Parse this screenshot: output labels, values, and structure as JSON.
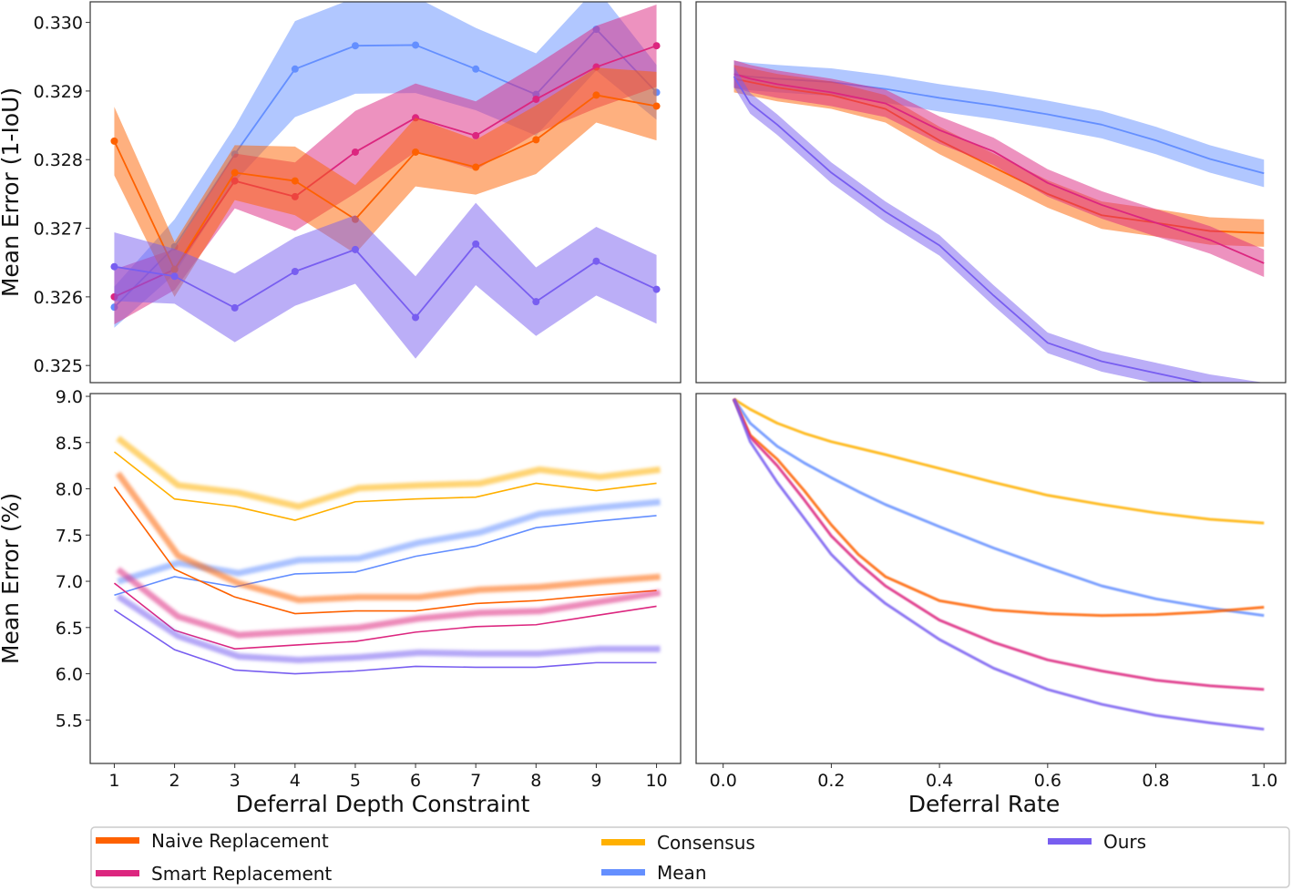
{
  "colors": {
    "Naive Replacement": "#FE6100",
    "Smart Replacement": "#DC267F",
    "Consensus": "#FFB000",
    "Mean": "#648FFF",
    "Ours": "#785EF0"
  },
  "legend": {
    "placement": "bottom",
    "entries": [
      "Naive Replacement",
      "Smart Replacement",
      "Consensus",
      "Mean",
      "Ours"
    ]
  },
  "chart_data": [
    {
      "type": "line",
      "panel": "top-left",
      "xlabel": "",
      "ylabel": "Mean Error (1-IoU)",
      "xlim": [
        0.6,
        10.4
      ],
      "ylim": [
        0.32475,
        0.3303
      ],
      "yticks": [
        "0.325",
        "0.326",
        "0.327",
        "0.328",
        "0.329",
        "0.330"
      ],
      "markers": true,
      "shaded_band": true,
      "x": [
        1,
        2,
        3,
        4,
        5,
        6,
        7,
        8,
        9,
        10
      ],
      "series": [
        {
          "name": "Mean",
          "values": [
            0.32585,
            0.32673,
            0.32808,
            0.32932,
            0.32966,
            0.32967,
            0.32932,
            0.32895,
            0.3299,
            0.32898
          ],
          "band": [
            0.0003,
            0.0004,
            0.0004,
            0.0007,
            0.0007,
            0.0007,
            0.0006,
            0.0006,
            0.0006,
            0.0004
          ]
        },
        {
          "name": "Smart Replacement",
          "values": [
            0.326,
            0.3264,
            0.32769,
            0.32746,
            0.32811,
            0.32861,
            0.32835,
            0.32888,
            0.32935,
            0.32966
          ],
          "band": [
            0.0004,
            0.0003,
            0.0004,
            0.0005,
            0.0006,
            0.0005,
            0.0005,
            0.0005,
            0.0006,
            0.0006
          ]
        },
        {
          "name": "Naive Replacement",
          "values": [
            0.32827,
            0.3264,
            0.32781,
            0.32769,
            0.32713,
            0.32811,
            0.32789,
            0.32829,
            0.32894,
            0.32878
          ],
          "band": [
            0.0005,
            0.0004,
            0.0004,
            0.0005,
            0.0005,
            0.0005,
            0.0004,
            0.0005,
            0.0004,
            0.0005
          ]
        },
        {
          "name": "Ours",
          "values": [
            0.32644,
            0.3263,
            0.32584,
            0.32637,
            0.32669,
            0.3257,
            0.32677,
            0.32593,
            0.32652,
            0.32611
          ],
          "band": [
            0.0005,
            0.0004,
            0.0005,
            0.0005,
            0.0005,
            0.0006,
            0.0006,
            0.0005,
            0.0005,
            0.0005
          ]
        }
      ]
    },
    {
      "type": "line",
      "panel": "top-right",
      "xlabel": "",
      "ylabel": "",
      "xlim": [
        -0.05,
        1.04
      ],
      "ylim": [
        0.32475,
        0.3303
      ],
      "shaded_band": true,
      "x": [
        0.02,
        0.05,
        0.1,
        0.2,
        0.3,
        0.4,
        0.5,
        0.6,
        0.7,
        0.8,
        0.9,
        1.0
      ],
      "series": [
        {
          "name": "Mean",
          "values": [
            0.32924,
            0.32921,
            0.32918,
            0.32913,
            0.32903,
            0.3289,
            0.32879,
            0.32866,
            0.32851,
            0.32828,
            0.32801,
            0.3278
          ],
          "band": 0.0002
        },
        {
          "name": "Naive Replacement",
          "values": [
            0.32918,
            0.32913,
            0.32905,
            0.32894,
            0.32874,
            0.32828,
            0.32789,
            0.3275,
            0.32719,
            0.32708,
            0.32696,
            0.32693
          ],
          "band": 0.0002
        },
        {
          "name": "Smart Replacement",
          "values": [
            0.32925,
            0.32918,
            0.3291,
            0.32898,
            0.32882,
            0.32843,
            0.32812,
            0.32766,
            0.32734,
            0.32708,
            0.32683,
            0.32649
          ],
          "band": 0.0002
        },
        {
          "name": "Ours",
          "values": [
            0.32921,
            0.32882,
            0.32851,
            0.32781,
            0.32724,
            0.32675,
            0.32602,
            0.32533,
            0.32506,
            0.32489,
            0.32472,
            0.3246
          ],
          "band": 0.00015
        }
      ]
    },
    {
      "type": "line",
      "panel": "bottom-left",
      "xlabel": "Deferral Depth Constraint",
      "ylabel": "Mean Error (%)",
      "xlim": [
        0.6,
        10.4
      ],
      "ylim": [
        5.03,
        9.03
      ],
      "yticks": [
        "5.5",
        "6.0",
        "6.5",
        "7.0",
        "7.5",
        "8.0",
        "8.5",
        "9.0"
      ],
      "xticks": [
        "1",
        "2",
        "3",
        "4",
        "5",
        "6",
        "7",
        "8",
        "9",
        "10"
      ],
      "x": [
        1,
        2,
        3,
        4,
        5,
        6,
        7,
        8,
        9,
        10
      ],
      "series": [
        {
          "name": "Consensus",
          "values": [
            8.4,
            7.89,
            7.81,
            7.66,
            7.86,
            7.89,
            7.91,
            8.06,
            7.98,
            8.06
          ]
        },
        {
          "name": "Mean",
          "values": [
            6.85,
            7.05,
            6.94,
            7.08,
            7.1,
            7.27,
            7.38,
            7.58,
            7.65,
            7.71
          ]
        },
        {
          "name": "Naive Replacement",
          "values": [
            8.02,
            7.13,
            6.83,
            6.65,
            6.68,
            6.68,
            6.76,
            6.79,
            6.85,
            6.9
          ]
        },
        {
          "name": "Smart Replacement",
          "values": [
            6.98,
            6.47,
            6.27,
            6.31,
            6.35,
            6.45,
            6.51,
            6.53,
            6.63,
            6.73
          ]
        },
        {
          "name": "Ours",
          "values": [
            6.69,
            6.26,
            6.04,
            6.0,
            6.03,
            6.08,
            6.07,
            6.07,
            6.12,
            6.12
          ]
        }
      ]
    },
    {
      "type": "line",
      "panel": "bottom-right",
      "xlabel": "Deferral Rate",
      "ylabel": "",
      "xlim": [
        -0.05,
        1.04
      ],
      "ylim": [
        5.03,
        9.03
      ],
      "xticks": [
        "0.0",
        "0.2",
        "0.4",
        "0.6",
        "0.8",
        "1.0"
      ],
      "x": [
        0.02,
        0.05,
        0.1,
        0.15,
        0.2,
        0.25,
        0.3,
        0.4,
        0.5,
        0.6,
        0.7,
        0.8,
        0.9,
        1.0
      ],
      "series": [
        {
          "name": "Consensus",
          "values": [
            8.97,
            8.86,
            8.71,
            8.6,
            8.51,
            8.44,
            8.37,
            8.22,
            8.07,
            7.93,
            7.83,
            7.74,
            7.67,
            7.63
          ]
        },
        {
          "name": "Mean",
          "values": [
            8.97,
            8.71,
            8.46,
            8.28,
            8.12,
            7.97,
            7.83,
            7.59,
            7.36,
            7.15,
            6.95,
            6.81,
            6.71,
            6.63
          ]
        },
        {
          "name": "Naive Replacement",
          "values": [
            8.97,
            8.58,
            8.32,
            7.98,
            7.61,
            7.29,
            7.05,
            6.79,
            6.69,
            6.65,
            6.63,
            6.64,
            6.67,
            6.72
          ]
        },
        {
          "name": "Smart Replacement",
          "values": [
            8.97,
            8.56,
            8.25,
            7.88,
            7.49,
            7.2,
            6.95,
            6.58,
            6.34,
            6.15,
            6.03,
            5.93,
            5.87,
            5.83
          ]
        },
        {
          "name": "Ours",
          "values": [
            8.97,
            8.51,
            8.07,
            7.68,
            7.29,
            7.0,
            6.76,
            6.37,
            6.06,
            5.83,
            5.67,
            5.55,
            5.47,
            5.4
          ]
        }
      ]
    }
  ]
}
